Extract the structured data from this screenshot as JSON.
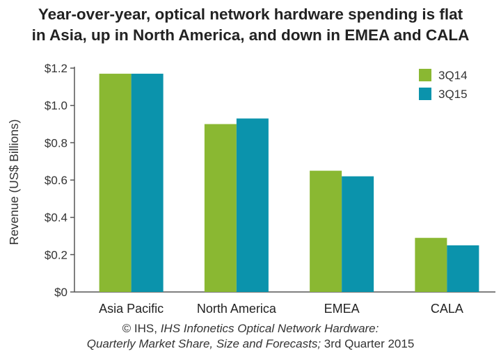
{
  "title_lines": [
    "Year-over-year, optical network hardware spending is flat",
    "in Asia, up in North America, and down in EMEA and CALA"
  ],
  "source": {
    "line1_prefix": "© IHS, ",
    "line1_italic": "IHS Infonetics Optical Network Hardware:",
    "line2_italic": "Quarterly Market Share, Size and Forecasts;",
    "line2_suffix": " 3rd Quarter 2015"
  },
  "colors": {
    "3Q14": "#8ab832",
    "3Q15": "#0b93ac",
    "axis": "#555555"
  },
  "chart_data": {
    "type": "bar",
    "title": "Year-over-year, optical network hardware spending is flat in Asia, up in North America, and down in EMEA and CALA",
    "xlabel": "",
    "ylabel": "Revenue (US$ Billions)",
    "categories": [
      "Asia Pacific",
      "North America",
      "EMEA",
      "CALA"
    ],
    "series": [
      {
        "name": "3Q14",
        "values": [
          1.17,
          0.9,
          0.65,
          0.29
        ]
      },
      {
        "name": "3Q15",
        "values": [
          1.17,
          0.93,
          0.62,
          0.25
        ]
      }
    ],
    "ylim": [
      0,
      1.2
    ],
    "yticks": [
      0,
      0.2,
      0.4,
      0.6,
      0.8,
      1.0,
      1.2
    ],
    "ytick_labels": [
      "$0",
      "$0.2",
      "$0.4",
      "$0.6",
      "$0.8",
      "$1.0",
      "$1.2"
    ],
    "grid": false,
    "legend": "top-right"
  }
}
